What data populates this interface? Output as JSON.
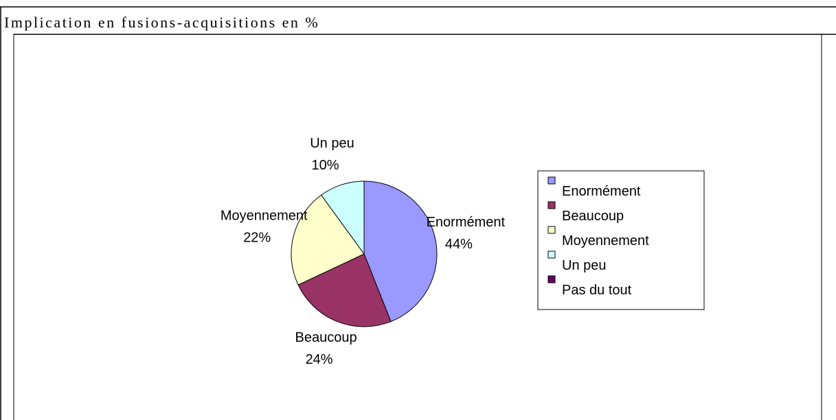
{
  "chart_data": {
    "type": "pie",
    "title": "Implication en fusions-acquisitions en %",
    "categories": [
      "Enormément",
      "Beaucoup",
      "Moyennement",
      "Un peu",
      "Pas du tout"
    ],
    "values": [
      44,
      24,
      22,
      10,
      0
    ],
    "value_labels": [
      "44%",
      "24%",
      "22%",
      "10%",
      null
    ],
    "colors": [
      "#9999ff",
      "#993366",
      "#ffffcc",
      "#ccffff",
      "#660066"
    ],
    "legend": "right"
  }
}
